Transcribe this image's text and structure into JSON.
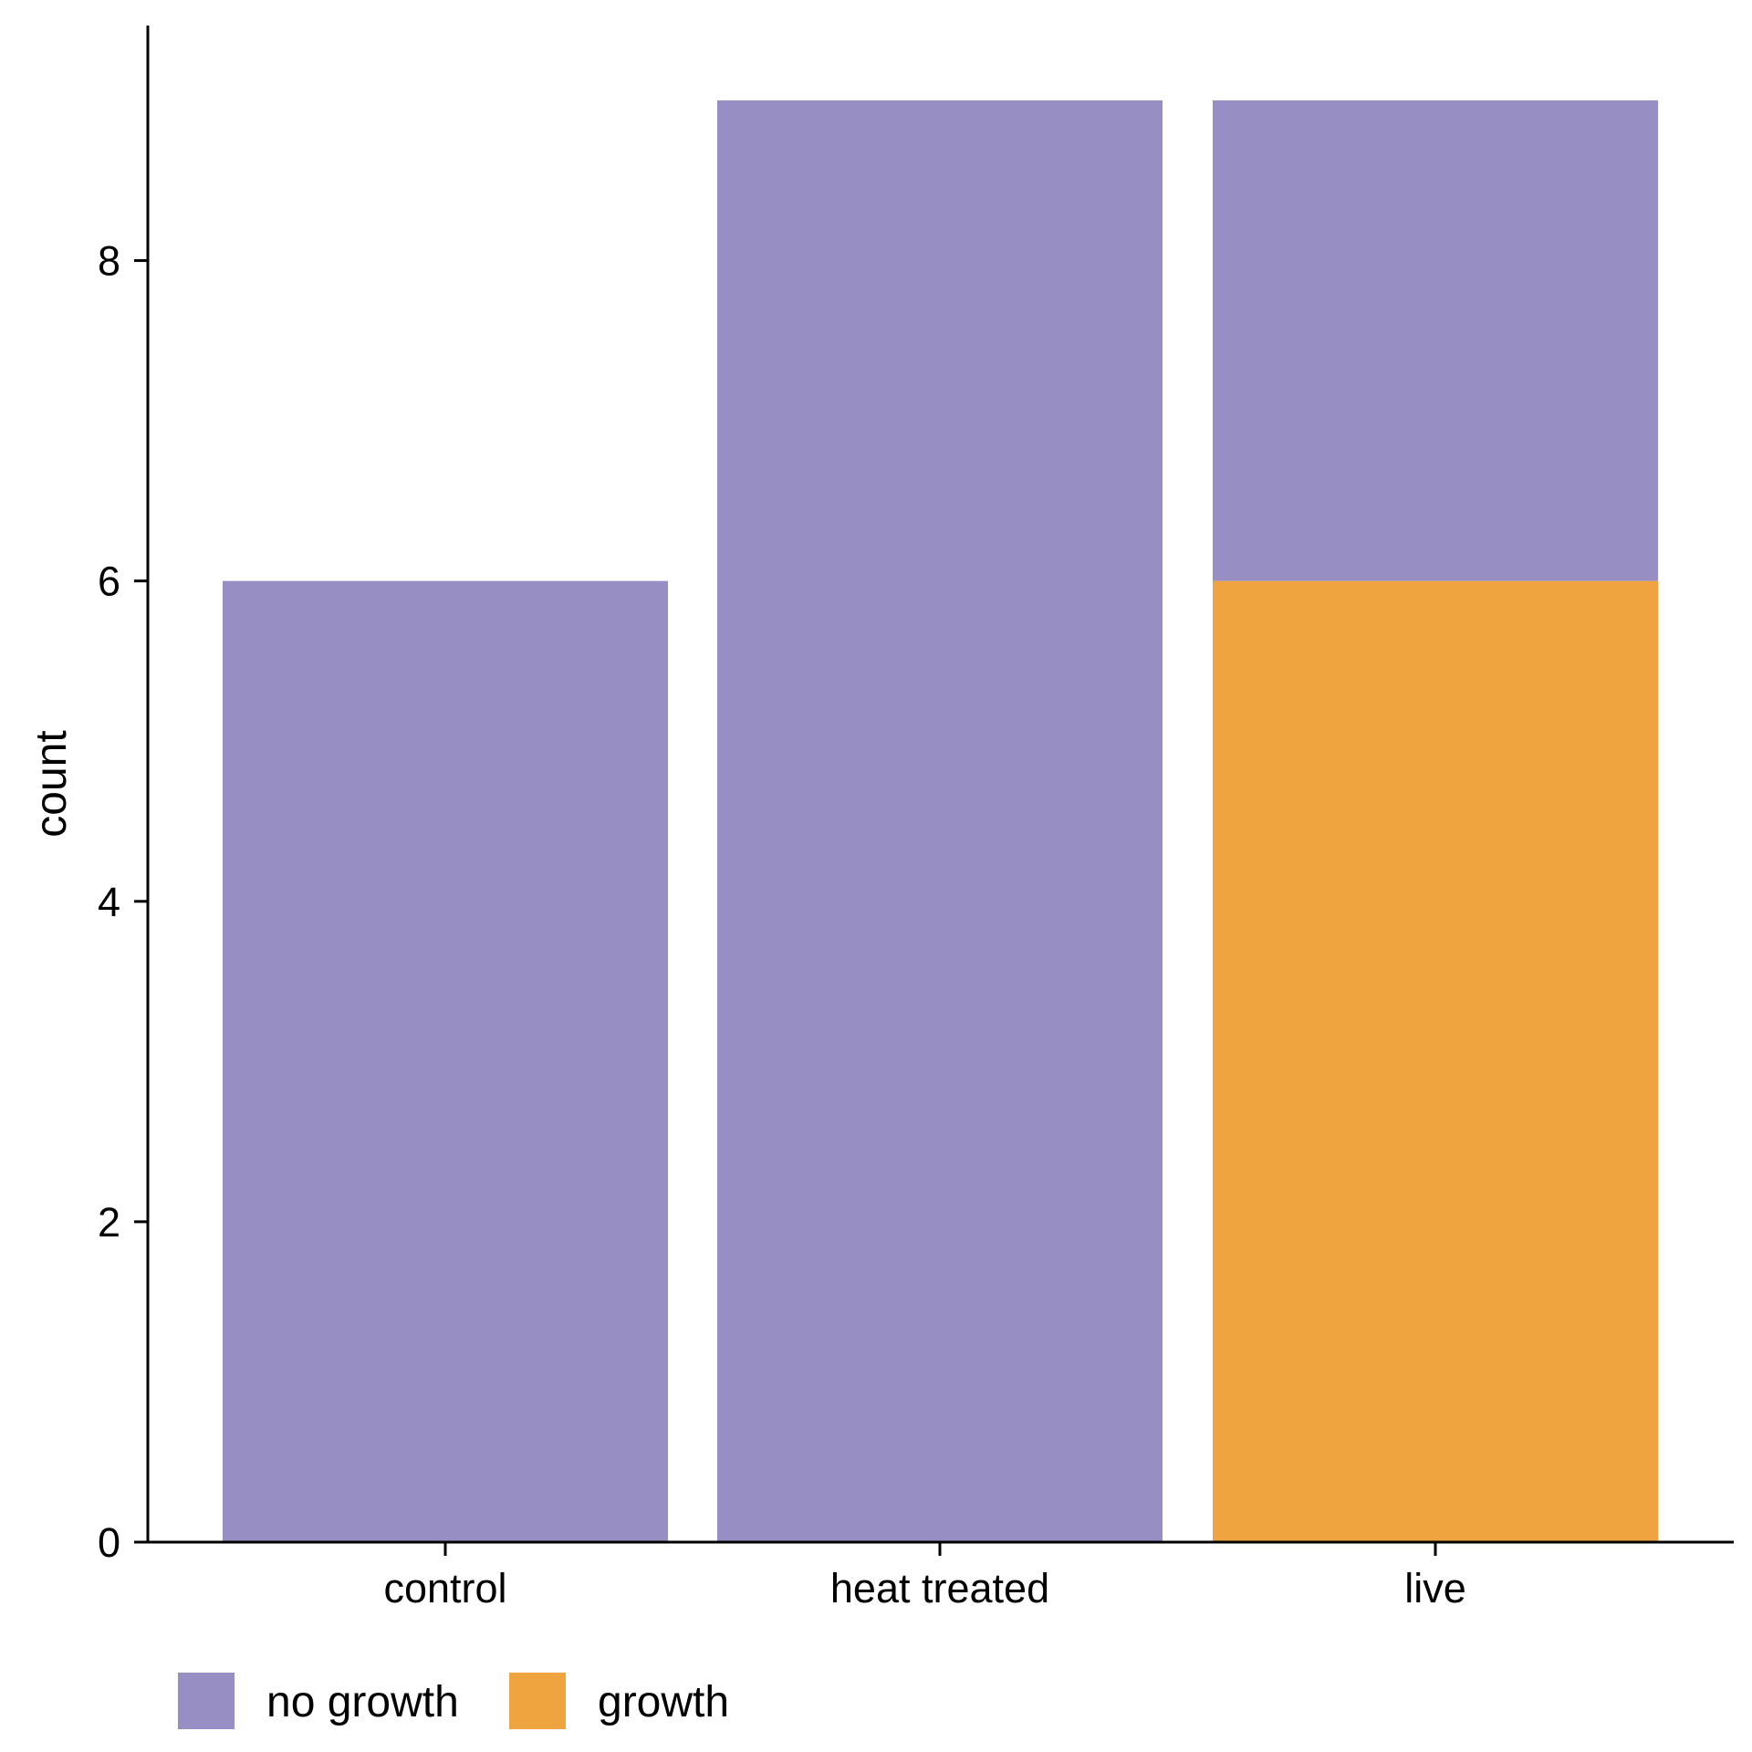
{
  "chart_data": {
    "type": "bar",
    "stacked": true,
    "categories": [
      "control",
      "heat treated",
      "live"
    ],
    "series": [
      {
        "name": "no growth",
        "color": "#978FC3",
        "values": [
          6,
          9,
          3
        ]
      },
      {
        "name": "growth",
        "color": "#F0A440",
        "values": [
          0,
          0,
          6
        ]
      }
    ],
    "stack_order": [
      "growth",
      "no growth"
    ],
    "title": "",
    "xlabel": "",
    "ylabel": "count",
    "ylim": [
      0,
      9.45
    ],
    "yticks": [
      0,
      2,
      4,
      6,
      8
    ],
    "grid": false,
    "legend_position": "bottom-left"
  }
}
